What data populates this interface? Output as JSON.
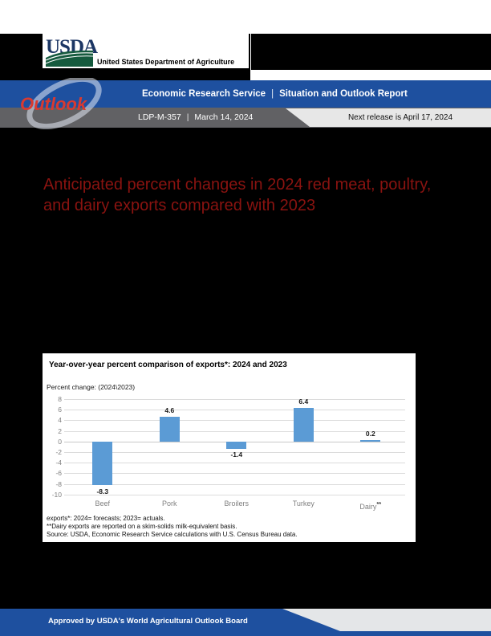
{
  "header": {
    "usda_wordmark": "USDA",
    "usda_tagline": "United States Department of Agriculture",
    "outlook_logo_text": "Outlook",
    "banner_left": "Economic Research Service",
    "banner_separator": "|",
    "banner_right": "Situation and Outlook Report",
    "report_id": "LDP-M-357",
    "report_separator": "|",
    "report_date": "March 14, 2024",
    "next_release": "Next release is April 17, 2024"
  },
  "main": {
    "title_line1": "Anticipated percent changes in 2024 red meat, poultry,",
    "title_line2": "and dairy exports compared with 2023"
  },
  "chart_data": {
    "type": "bar",
    "title": "Year-over-year percent comparison of exports*: 2024 and 2023",
    "subtitle": "Percent change: (2024\\2023)",
    "categories": [
      "Beef",
      "Pork",
      "Broilers",
      "Turkey",
      "Dairy"
    ],
    "category_superscripts": [
      "",
      "",
      "",
      "",
      "**"
    ],
    "values": [
      -8.3,
      4.6,
      -1.4,
      6.4,
      0.2
    ],
    "value_labels": [
      "-8.3",
      "4.6",
      "-1.4",
      "6.4",
      "0.2"
    ],
    "yticks": [
      8,
      6,
      4,
      2,
      0,
      -2,
      -4,
      -6,
      -8,
      -10
    ],
    "ylim": [
      -10,
      8
    ],
    "grid": true,
    "legend": "none",
    "footnotes": [
      "exports*: 2024= forecasts; 2023= actuals.",
      "**Dairy exports are reported on a skim-solids milk-equivalent basis.",
      "Source: USDA, Economic Research Service calculations with U.S. Census Bureau data."
    ]
  },
  "footer": {
    "approval": "Approved by USDA's World Agricultural Outlook Board"
  },
  "colors": {
    "banner_blue": "#1e509f",
    "report_bar_gray": "#616164",
    "next_release_bg": "#e7e7e7",
    "title_red": "#8a1310",
    "bar_blue": "#5b9bd5",
    "outlook_red": "#d93a30",
    "usda_navy": "#1c3664",
    "usda_green": "#155a3e"
  }
}
